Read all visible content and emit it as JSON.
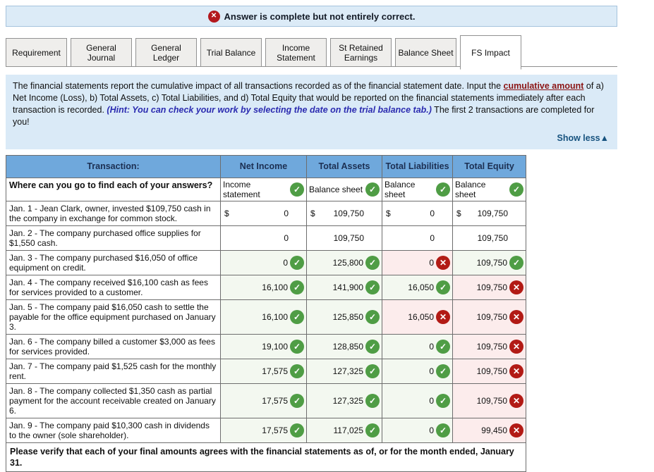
{
  "banner": {
    "text": "Answer is complete but not entirely correct."
  },
  "tabs": [
    {
      "label": "Requirement",
      "active": false
    },
    {
      "label": "General Journal",
      "active": false
    },
    {
      "label": "General Ledger",
      "active": false
    },
    {
      "label": "Trial Balance",
      "active": false
    },
    {
      "label": "Income Statement",
      "active": false
    },
    {
      "label": "St Retained Earnings",
      "active": false
    },
    {
      "label": "Balance Sheet",
      "active": false
    },
    {
      "label": "FS Impact",
      "active": true
    }
  ],
  "instructions": {
    "segment1": "The financial statements report the cumulative impact of all transactions recorded as of the financial statement date. Input the ",
    "link": "cumulative amount",
    "segment2": " of a) Net Income (Loss), b) Total Assets, c) Total Liabilities, and d) Total Equity that would be reported on the financial statements immediately after each transaction is recorded. ",
    "hint": "(Hint: You can check your work by selecting the date on the trial balance tab.)",
    "segment3": " The first 2 transactions are completed for you!",
    "show_less": "Show less",
    "show_less_arrow": "▲"
  },
  "table": {
    "headers": [
      "Transaction:",
      "Net Income",
      "Total Assets",
      "Total Liabilities",
      "Total Equity"
    ],
    "answers_row": {
      "question": "Where can you go to find each of your answers?",
      "sources": [
        {
          "label": "Income statement",
          "status": "correct"
        },
        {
          "label": "Balance sheet",
          "status": "correct"
        },
        {
          "label": "Balance sheet",
          "status": "correct"
        },
        {
          "label": "Balance sheet",
          "status": "correct"
        }
      ]
    },
    "rows": [
      {
        "transaction": "Jan. 1 - Jean Clark, owner, invested $109,750 cash in the company in exchange for common stock.",
        "cells": [
          {
            "dollar": true,
            "value": "0",
            "status": "none"
          },
          {
            "dollar": true,
            "value": "109,750",
            "status": "none"
          },
          {
            "dollar": true,
            "value": "0",
            "status": "none"
          },
          {
            "dollar": true,
            "value": "109,750",
            "status": "none"
          }
        ]
      },
      {
        "transaction": "Jan. 2 - The company purchased office supplies for $1,550 cash.",
        "cells": [
          {
            "dollar": false,
            "value": "0",
            "status": "none"
          },
          {
            "dollar": false,
            "value": "109,750",
            "status": "none"
          },
          {
            "dollar": false,
            "value": "0",
            "status": "none"
          },
          {
            "dollar": false,
            "value": "109,750",
            "status": "none"
          }
        ]
      },
      {
        "transaction": "Jan. 3 - The company purchased $16,050 of office equipment on credit.",
        "cells": [
          {
            "dollar": false,
            "value": "0",
            "status": "correct"
          },
          {
            "dollar": false,
            "value": "125,800",
            "status": "correct"
          },
          {
            "dollar": false,
            "value": "0",
            "status": "incorrect"
          },
          {
            "dollar": false,
            "value": "109,750",
            "status": "correct"
          }
        ]
      },
      {
        "transaction": "Jan. 4 - The company received $16,100 cash as fees for services provided to a customer.",
        "cells": [
          {
            "dollar": false,
            "value": "16,100",
            "status": "correct"
          },
          {
            "dollar": false,
            "value": "141,900",
            "status": "correct"
          },
          {
            "dollar": false,
            "value": "16,050",
            "status": "correct"
          },
          {
            "dollar": false,
            "value": "109,750",
            "status": "incorrect"
          }
        ]
      },
      {
        "transaction": "Jan. 5 - The company paid $16,050 cash to settle the payable for the office equipment purchased on January 3.",
        "cells": [
          {
            "dollar": false,
            "value": "16,100",
            "status": "correct"
          },
          {
            "dollar": false,
            "value": "125,850",
            "status": "correct"
          },
          {
            "dollar": false,
            "value": "16,050",
            "status": "incorrect"
          },
          {
            "dollar": false,
            "value": "109,750",
            "status": "incorrect"
          }
        ]
      },
      {
        "transaction": "Jan. 6 - The company billed a customer $3,000 as fees for services provided.",
        "cells": [
          {
            "dollar": false,
            "value": "19,100",
            "status": "correct"
          },
          {
            "dollar": false,
            "value": "128,850",
            "status": "correct"
          },
          {
            "dollar": false,
            "value": "0",
            "status": "correct"
          },
          {
            "dollar": false,
            "value": "109,750",
            "status": "incorrect"
          }
        ]
      },
      {
        "transaction": "Jan. 7 - The company paid $1,525 cash for the monthly rent.",
        "cells": [
          {
            "dollar": false,
            "value": "17,575",
            "status": "correct"
          },
          {
            "dollar": false,
            "value": "127,325",
            "status": "correct"
          },
          {
            "dollar": false,
            "value": "0",
            "status": "correct"
          },
          {
            "dollar": false,
            "value": "109,750",
            "status": "incorrect"
          }
        ]
      },
      {
        "transaction": "Jan. 8 - The company collected $1,350 cash as partial payment for the account receivable created on January 6.",
        "cells": [
          {
            "dollar": false,
            "value": "17,575",
            "status": "correct"
          },
          {
            "dollar": false,
            "value": "127,325",
            "status": "correct"
          },
          {
            "dollar": false,
            "value": "0",
            "status": "correct"
          },
          {
            "dollar": false,
            "value": "109,750",
            "status": "incorrect"
          }
        ]
      },
      {
        "transaction": "Jan. 9 - The company paid $10,300 cash in dividends to the owner (sole shareholder).",
        "cells": [
          {
            "dollar": false,
            "value": "17,575",
            "status": "correct"
          },
          {
            "dollar": false,
            "value": "117,025",
            "status": "correct"
          },
          {
            "dollar": false,
            "value": "0",
            "status": "correct"
          },
          {
            "dollar": false,
            "value": "99,450",
            "status": "incorrect"
          }
        ]
      }
    ],
    "footer": "Please verify that each of your final amounts agrees with the financial statements as of, or for the month ended, January 31."
  },
  "icons": {
    "check": "✓",
    "cross": "✕"
  },
  "colors": {
    "header_blue": "#6fa8dc",
    "correct_green": "#4f9d45",
    "incorrect_red": "#b21a15",
    "correct_cell_bg": "#f3f8f0",
    "incorrect_cell_bg": "#fcecec",
    "banner_bg": "#dcebf7",
    "instruction_bg": "#daeaf7"
  }
}
